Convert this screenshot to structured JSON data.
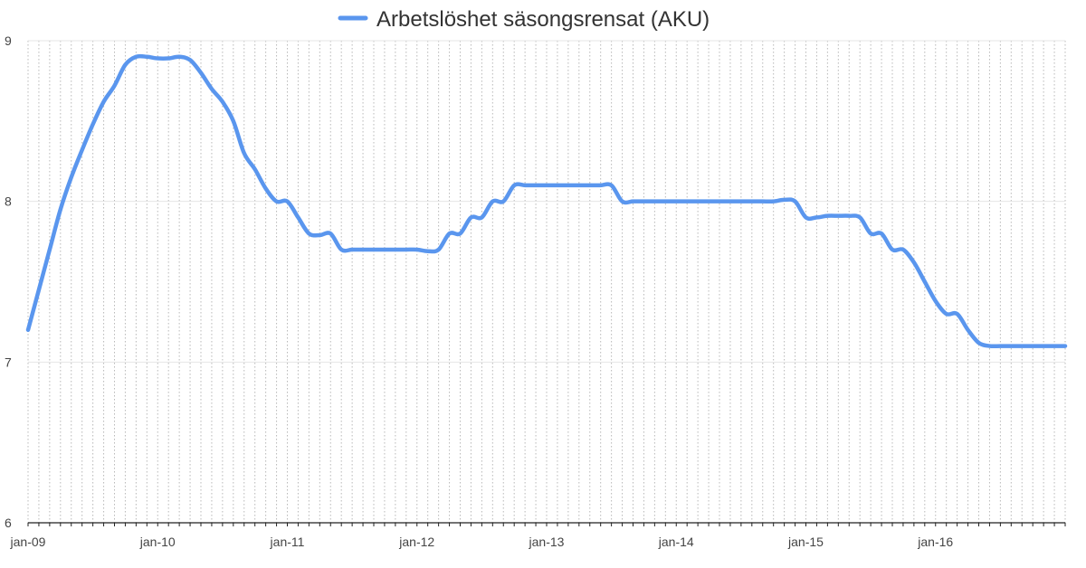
{
  "chart_data": {
    "type": "line",
    "title": "",
    "xlabel": "",
    "ylabel": "",
    "ylim": [
      6,
      9
    ],
    "yticks": [
      6,
      7,
      8,
      9
    ],
    "y_tick_labels": [
      "6",
      "7",
      "8",
      "9"
    ],
    "xticks": [
      "jan-09",
      "jan-10",
      "jan-11",
      "jan-12",
      "jan-13",
      "jan-14",
      "jan-15",
      "jan-16"
    ],
    "x_start_label": "jan-09",
    "x_period": "monthly",
    "grid": "vertical dotted lines at each month",
    "legend": {
      "placement": "top-center"
    },
    "series": [
      {
        "name": "Arbetslöshet säsongsrensat (AKU)",
        "color": "#5a96ee",
        "values": [
          7.2,
          7.45,
          7.7,
          7.95,
          8.15,
          8.32,
          8.48,
          8.62,
          8.72,
          8.85,
          8.9,
          8.9,
          8.89,
          8.89,
          8.9,
          8.88,
          8.8,
          8.7,
          8.62,
          8.5,
          8.3,
          8.2,
          8.08,
          8.0,
          8.0,
          7.9,
          7.8,
          7.79,
          7.8,
          7.7,
          7.7,
          7.7,
          7.7,
          7.7,
          7.7,
          7.7,
          7.7,
          7.69,
          7.7,
          7.8,
          7.8,
          7.9,
          7.9,
          8.0,
          8.0,
          8.1,
          8.1,
          8.1,
          8.1,
          8.1,
          8.1,
          8.1,
          8.1,
          8.1,
          8.1,
          8.0,
          8.0,
          8.0,
          8.0,
          8.0,
          8.0,
          8.0,
          8.0,
          8.0,
          8.0,
          8.0,
          8.0,
          8.0,
          8.0,
          8.0,
          8.01,
          8.0,
          7.9,
          7.9,
          7.91,
          7.91,
          7.91,
          7.9,
          7.8,
          7.8,
          7.7,
          7.7,
          7.62,
          7.5,
          7.38,
          7.3,
          7.3,
          7.2,
          7.12,
          7.1,
          7.1,
          7.1,
          7.1,
          7.1,
          7.1,
          7.1,
          7.1
        ]
      }
    ]
  }
}
